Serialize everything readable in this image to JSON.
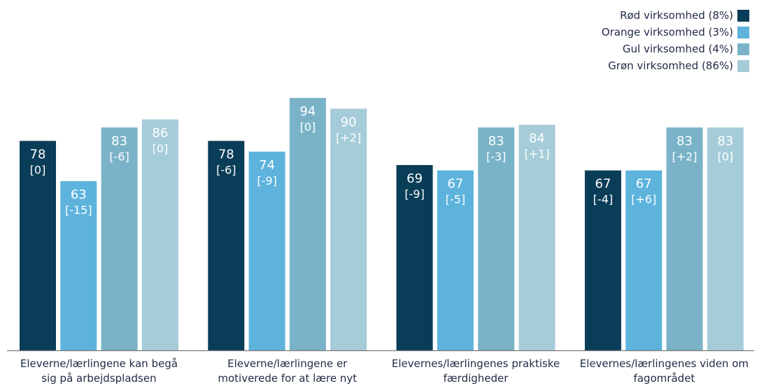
{
  "chart_data": {
    "type": "bar",
    "categories": [
      [
        "Eleverne/lærlingene kan begå",
        "sig på arbejdspladsen"
      ],
      [
        "Eleverne/lærlingene er",
        "motiverede for at lære nyt"
      ],
      [
        "Elevernes/lærlingenes praktiske",
        "færdigheder"
      ],
      [
        "Elevernes/lærlingenes viden om",
        "fagområdet"
      ]
    ],
    "series": [
      {
        "name": "Rød virksomhed (8%)",
        "color": "#0a3d57",
        "label_color": "#ffffff",
        "values": [
          78,
          78,
          69,
          67
        ],
        "changes": [
          "[0]",
          "[-6]",
          "[-9]",
          "[-4]"
        ]
      },
      {
        "name": "Orange virksomhed (3%)",
        "color": "#5db3dc",
        "label_color": "#ffffff",
        "values": [
          63,
          74,
          67,
          67
        ],
        "changes": [
          "[-15]",
          "[-9]",
          "[-5]",
          "[+6]"
        ]
      },
      {
        "name": "Gul virksomhed (4%)",
        "color": "#7ab3c8",
        "label_color": "#ffffff",
        "values": [
          83,
          94,
          83,
          83
        ],
        "changes": [
          "[-6]",
          "[0]",
          "[-3]",
          "[+2]"
        ]
      },
      {
        "name": "Grøn virksomhed (86%)",
        "color": "#a6ccd9",
        "label_color": "#ffffff",
        "values": [
          86,
          90,
          84,
          83
        ],
        "changes": [
          "[0]",
          "[+2]",
          "[+1]",
          "[0]"
        ]
      }
    ],
    "ylim": [
      0,
      100
    ],
    "grid": false,
    "legend_position": "top-right",
    "xlabel": "",
    "ylabel": ""
  }
}
